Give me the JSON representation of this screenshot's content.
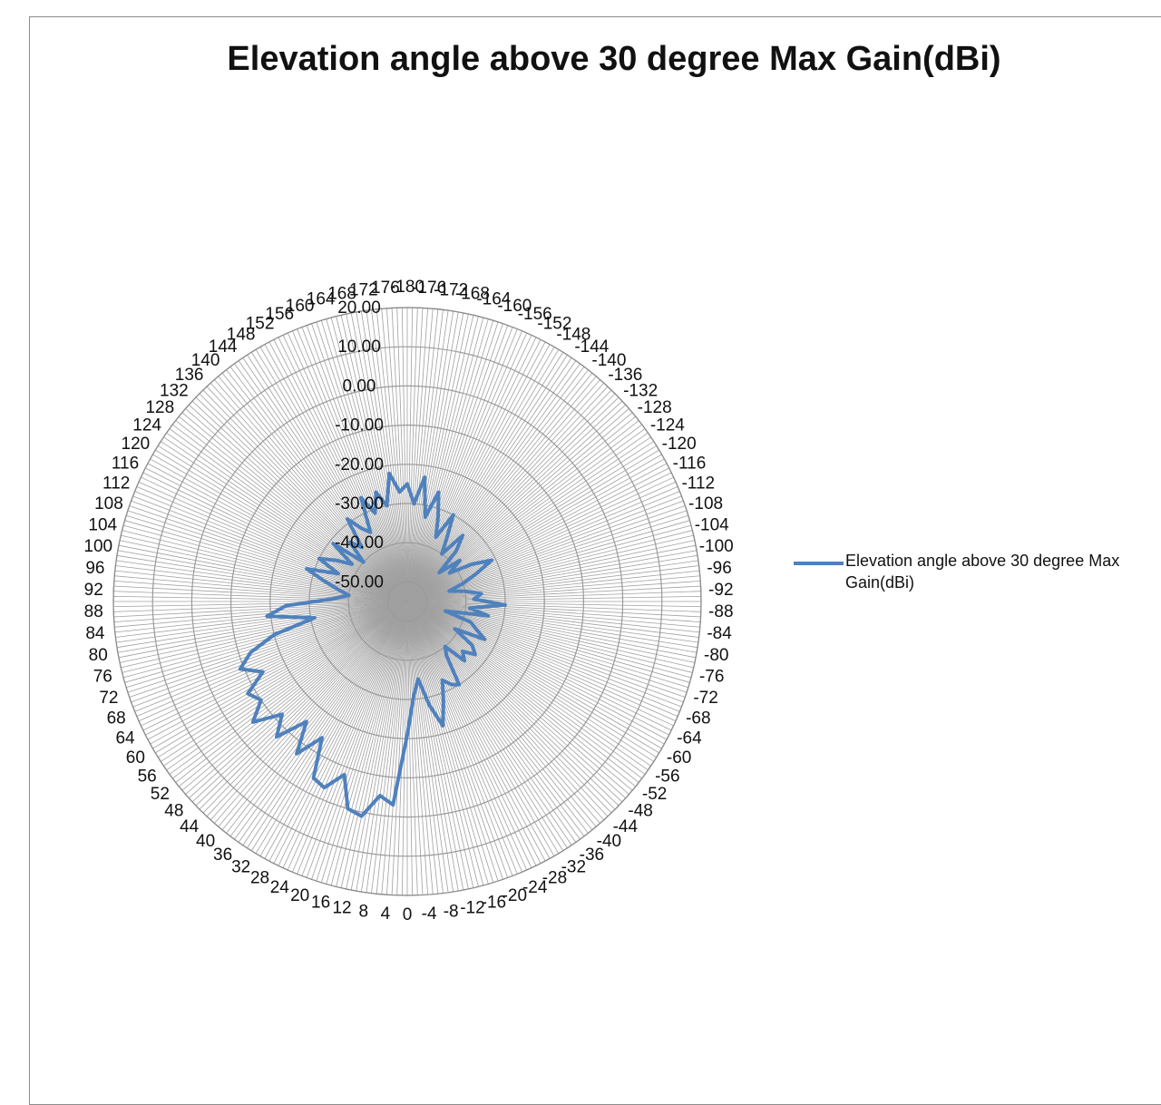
{
  "chart_data": {
    "type": "radar",
    "title": "Elevation angle above 30 degree Max Gain(dBi)",
    "legend": {
      "position": "right",
      "entries": [
        "Elevation angle above 30 degree Max Gain(dBi)"
      ]
    },
    "series": [
      {
        "name": "Elevation angle above 30 degree Max Gain(dBi)",
        "color": "#4f81bd",
        "points": [
          {
            "angle": 0,
            "gain": -21
          },
          {
            "angle": -4,
            "gain": -31
          },
          {
            "angle": -8,
            "gain": -35
          },
          {
            "angle": -12,
            "gain": -28
          },
          {
            "angle": -16,
            "gain": -22
          },
          {
            "angle": -20,
            "gain": -28
          },
          {
            "angle": -24,
            "gain": -33
          },
          {
            "angle": -28,
            "gain": -31
          },
          {
            "angle": -32,
            "gain": -30
          },
          {
            "angle": -36,
            "gain": -38
          },
          {
            "angle": -40,
            "gain": -40
          },
          {
            "angle": -44,
            "gain": -34
          },
          {
            "angle": -48,
            "gain": -36
          },
          {
            "angle": -52,
            "gain": -33
          },
          {
            "angle": -56,
            "gain": -35
          },
          {
            "angle": -60,
            "gain": -41
          },
          {
            "angle": -64,
            "gain": -33
          },
          {
            "angle": -68,
            "gain": -36
          },
          {
            "angle": -72,
            "gain": -38
          },
          {
            "angle": -76,
            "gain": -45
          },
          {
            "angle": -80,
            "gain": -34
          },
          {
            "angle": -84,
            "gain": -39
          },
          {
            "angle": -88,
            "gain": -30
          },
          {
            "angle": -92,
            "gain": -38
          },
          {
            "angle": -96,
            "gain": -36
          },
          {
            "angle": -100,
            "gain": -40
          },
          {
            "angle": -104,
            "gain": -44
          },
          {
            "angle": -108,
            "gain": -40
          },
          {
            "angle": -112,
            "gain": -36
          },
          {
            "angle": -116,
            "gain": -31
          },
          {
            "angle": -120,
            "gain": -36
          },
          {
            "angle": -124,
            "gain": -42
          },
          {
            "angle": -128,
            "gain": -38
          },
          {
            "angle": -132,
            "gain": -44
          },
          {
            "angle": -136,
            "gain": -37
          },
          {
            "angle": -140,
            "gain": -33
          },
          {
            "angle": -144,
            "gain": -40
          },
          {
            "angle": -148,
            "gain": -36
          },
          {
            "angle": -152,
            "gain": -30
          },
          {
            "angle": -156,
            "gain": -37
          },
          {
            "angle": -160,
            "gain": -32
          },
          {
            "angle": -164,
            "gain": -26
          },
          {
            "angle": -168,
            "gain": -33
          },
          {
            "angle": -172,
            "gain": -23
          },
          {
            "angle": -176,
            "gain": -30
          },
          {
            "angle": 180,
            "gain": -25
          },
          {
            "angle": 176,
            "gain": -27
          },
          {
            "angle": 172,
            "gain": -22
          },
          {
            "angle": 168,
            "gain": -30
          },
          {
            "angle": 164,
            "gain": -26
          },
          {
            "angle": 160,
            "gain": -31
          },
          {
            "angle": 156,
            "gain": -26
          },
          {
            "angle": 152,
            "gain": -35
          },
          {
            "angle": 148,
            "gain": -33
          },
          {
            "angle": 144,
            "gain": -29
          },
          {
            "angle": 140,
            "gain": -37
          },
          {
            "angle": 136,
            "gain": -34
          },
          {
            "angle": 132,
            "gain": -40
          },
          {
            "angle": 128,
            "gain": -31
          },
          {
            "angle": 124,
            "gain": -38
          },
          {
            "angle": 120,
            "gain": -34
          },
          {
            "angle": 116,
            "gain": -30
          },
          {
            "angle": 112,
            "gain": -36
          },
          {
            "angle": 108,
            "gain": -28
          },
          {
            "angle": 104,
            "gain": -33
          },
          {
            "angle": 100,
            "gain": -37
          },
          {
            "angle": 96,
            "gain": -40
          },
          {
            "angle": 92,
            "gain": -36
          },
          {
            "angle": 88,
            "gain": -24
          },
          {
            "angle": 84,
            "gain": -19
          },
          {
            "angle": 80,
            "gain": -31
          },
          {
            "angle": 76,
            "gain": -20
          },
          {
            "angle": 72,
            "gain": -13
          },
          {
            "angle": 68,
            "gain": -9
          },
          {
            "angle": 64,
            "gain": -14
          },
          {
            "angle": 60,
            "gain": -8
          },
          {
            "angle": 56,
            "gain": -10
          },
          {
            "angle": 52,
            "gain": -5
          },
          {
            "angle": 48,
            "gain": -12
          },
          {
            "angle": 44,
            "gain": -7
          },
          {
            "angle": 40,
            "gain": -15
          },
          {
            "angle": 36,
            "gain": -7
          },
          {
            "angle": 32,
            "gain": -14
          },
          {
            "angle": 28,
            "gain": -4
          },
          {
            "angle": 24,
            "gain": -3
          },
          {
            "angle": 20,
            "gain": -8
          },
          {
            "angle": 16,
            "gain": 0
          },
          {
            "angle": 12,
            "gain": 1
          },
          {
            "angle": 8,
            "gain": -5
          },
          {
            "angle": 4,
            "gain": -3
          }
        ]
      }
    ],
    "radial_axis": {
      "min": -55,
      "max": 20,
      "ticks": [
        "-50.00",
        "-40.00",
        "-30.00",
        "-20.00",
        "-10.00",
        "0.00",
        "10.00",
        "20.00"
      ],
      "tick_values": [
        -50,
        -40,
        -30,
        -20,
        -10,
        0,
        10,
        20
      ],
      "unit": "dBi",
      "grid": true
    },
    "angular_axis": {
      "step_degrees": 4,
      "zero_direction": "bottom",
      "labels": [
        "0",
        "4",
        "8",
        "12",
        "16",
        "20",
        "24",
        "28",
        "32",
        "36",
        "40",
        "44",
        "48",
        "52",
        "56",
        "60",
        "64",
        "68",
        "72",
        "76",
        "80",
        "84",
        "88",
        "92",
        "96",
        "100",
        "104",
        "108",
        "112",
        "116",
        "120",
        "124",
        "128",
        "132",
        "136",
        "140",
        "144",
        "148",
        "152",
        "156",
        "160",
        "164",
        "168",
        "172",
        "176",
        "-180",
        "-176",
        "-172",
        "-168",
        "-164",
        "-160",
        "-156",
        "-152",
        "-148",
        "-144",
        "-140",
        "-136",
        "-132",
        "-128",
        "-124",
        "-120",
        "-116",
        "-112",
        "-108",
        "-104",
        "-100",
        "-96",
        "-92",
        "-88",
        "-84",
        "-80",
        "-76",
        "-72",
        "-68",
        "-64",
        "-60",
        "-56",
        "-52",
        "-48",
        "-44",
        "-40",
        "-36",
        "-32",
        "-28",
        "-24",
        "-20",
        "-16",
        "-12",
        "-8",
        "-4"
      ]
    }
  }
}
